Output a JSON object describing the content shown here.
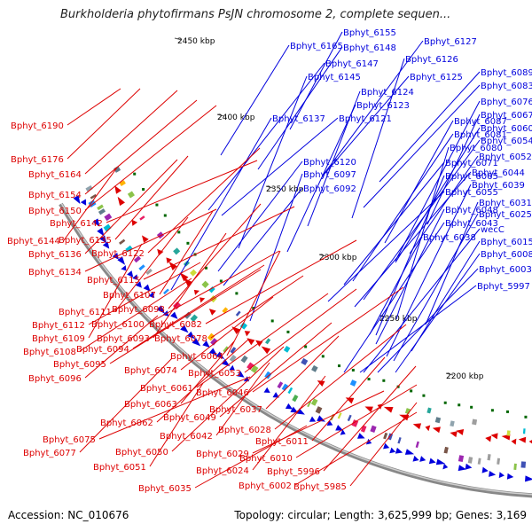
{
  "title": "Burkholderia phytofirmans PsJN chromosome 2, complete sequen...",
  "accession": "Accession: NC_010676",
  "summary": "Topology: circular; Length: 3,625,999 bp; Genes: 3,169",
  "colors": {
    "forward": "#0000dd",
    "reverse": "#dd0000",
    "backbone": "#888888",
    "tick": "#006600"
  },
  "scale_labels": [
    "2450 kbp",
    "2400 kbp",
    "2350 kbp",
    "2300 kbp",
    "2250 kbp",
    "2200 kbp"
  ],
  "forward_labels": [
    "Bphyt_6155",
    "Bphyt_6165",
    "Bphyt_6148",
    "Bphyt_6127",
    "Bphyt_6147",
    "Bphyt_6126",
    "Bphyt_6145",
    "Bphyt_6125",
    "Bphyt_6089",
    "Bphyt_6083",
    "Bphyt_6124",
    "Bphyt_6123",
    "Bphyt_6076",
    "Bphyt_6137",
    "Bphyt_6121",
    "Bphyt_6067",
    "Bphyt_6087",
    "Bphyt_6060",
    "Bphyt_6081",
    "Bphyt_6054",
    "Bphyt_6080",
    "Bphyt_6052",
    "Bphyt_6120",
    "Bphyt_6071",
    "Bphyt_6044",
    "Bphyt_6097",
    "Bphyt_6065",
    "Bphyt_6039",
    "Bphyt_6092",
    "Bphyt_6055",
    "Bphyt_6031",
    "Bphyt_6048",
    "Bphyt_6025",
    "Bphyt_6043",
    "wecC",
    "Bphyt_6038",
    "Bphyt_6015",
    "Bphyt_6008",
    "Bphyt_6003",
    "Bphyt_5997"
  ],
  "reverse_labels": [
    "Bphyt_6190",
    "Bphyt_6176",
    "Bphyt_6164",
    "Bphyt_6154",
    "Bphyt_6150",
    "Bphyt_6142",
    "Bphyt_6144",
    "Bphyt_6135",
    "Bphyt_6136",
    "Bphyt_6122",
    "Bphyt_6134",
    "Bphyt_6115",
    "Bphyt_6107",
    "Bphyt_6111",
    "Bphyt_6098",
    "Bphyt_6112",
    "Bphyt_6100",
    "Bphyt_6082",
    "Bphyt_6109",
    "Bphyt_6093",
    "Bphyt_6078",
    "Bphyt_6108",
    "Bphyt_6094",
    "Bphyt_6095",
    "Bphyt_6064",
    "Bphyt_6096",
    "Bphyt_6074",
    "Bphyt_6053",
    "Bphyt_6061",
    "Bphyt_6046",
    "Bphyt_6063",
    "Bphyt_6037",
    "Bphyt_6062",
    "Bphyt_6049",
    "Bphyt_6028",
    "Bphyt_6075",
    "Bphyt_6042",
    "Bphyt_6011",
    "Bphyt_6077",
    "Bphyt_6050",
    "Bphyt_6029",
    "Bphyt_6010",
    "Bphyt_6051",
    "Bphyt_6024",
    "Bphyt_5996",
    "Bphyt_6035",
    "Bphyt_6002",
    "Bphyt_5985"
  ]
}
